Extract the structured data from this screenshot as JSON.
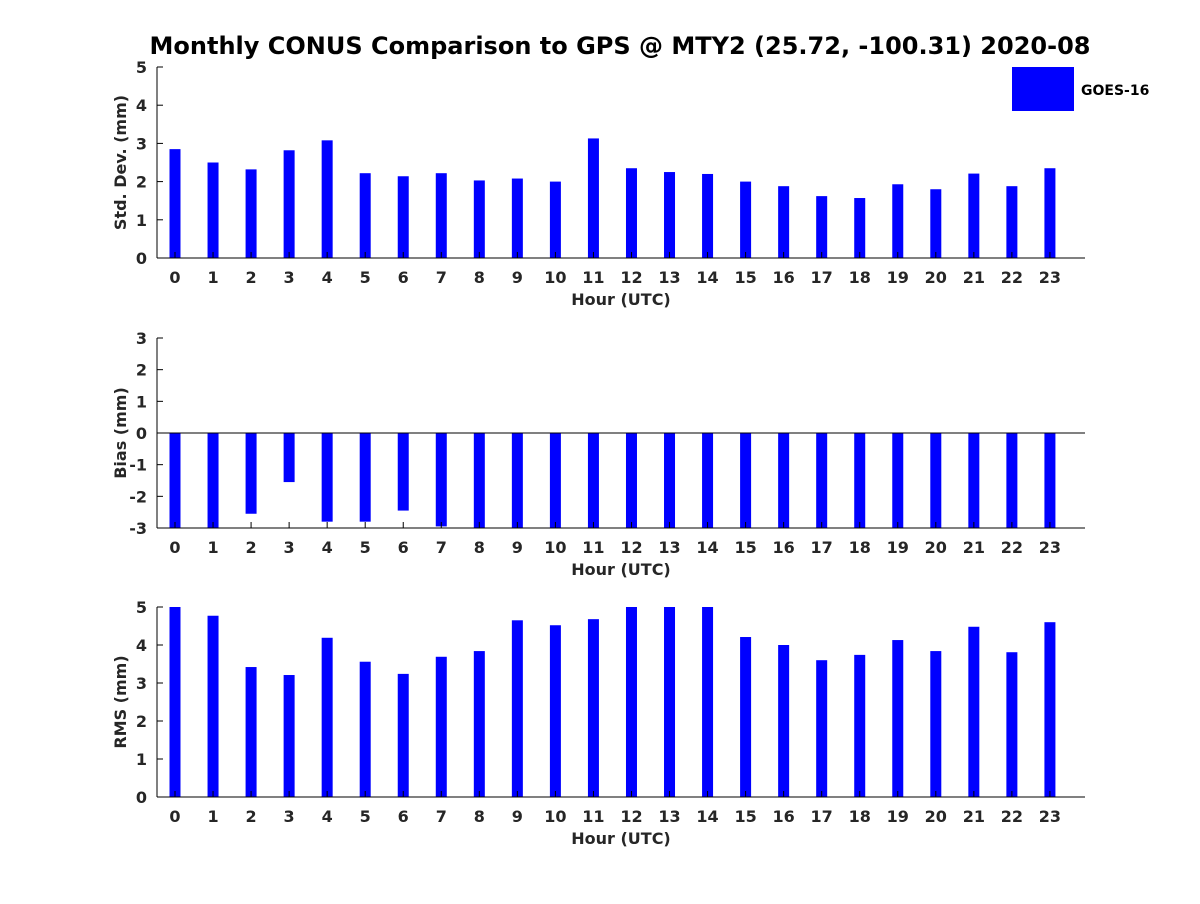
{
  "chart_data": {
    "title": "Monthly CONUS Comparison to GPS @ MTY2 (25.72, -100.31) 2020-08",
    "type": "bar",
    "legend": {
      "label": "GOES-16",
      "color": "#0000ff",
      "placement": "top-right"
    },
    "categories": [
      "0",
      "1",
      "2",
      "3",
      "4",
      "5",
      "6",
      "7",
      "8",
      "9",
      "10",
      "11",
      "12",
      "13",
      "14",
      "15",
      "16",
      "17",
      "18",
      "19",
      "20",
      "21",
      "22",
      "23"
    ],
    "panels": [
      {
        "name": "std-dev",
        "type": "bar",
        "xlabel": "Hour (UTC)",
        "ylabel": "Std. Dev. (mm)",
        "ylim": [
          0,
          5
        ],
        "yticks": [
          "0",
          "1",
          "2",
          "3",
          "4",
          "5"
        ],
        "series": [
          {
            "name": "GOES-16",
            "values": [
              2.85,
              2.5,
              2.32,
              2.82,
              3.08,
              2.22,
              2.14,
              2.22,
              2.03,
              2.08,
              2.0,
              3.13,
              2.35,
              2.25,
              2.2,
              2.0,
              1.88,
              1.62,
              1.57,
              1.93,
              1.8,
              2.21,
              1.88,
              2.35
            ]
          }
        ]
      },
      {
        "name": "bias",
        "type": "bar",
        "xlabel": "Hour (UTC)",
        "ylabel": "Bias (mm)",
        "ylim": [
          -3,
          3
        ],
        "yticks": [
          "-3",
          "-2",
          "-1",
          "0",
          "1",
          "2",
          "3"
        ],
        "series": [
          {
            "name": "GOES-16",
            "values": [
              -3.0,
              -3.0,
              -2.55,
              -1.55,
              -2.8,
              -2.8,
              -2.45,
              -2.95,
              -3.0,
              -3.0,
              -3.0,
              -3.0,
              -3.0,
              -3.0,
              -3.0,
              -3.0,
              -3.0,
              -3.0,
              -3.0,
              -3.0,
              -3.0,
              -3.0,
              -3.0,
              -3.0
            ]
          }
        ]
      },
      {
        "name": "rms",
        "type": "bar",
        "xlabel": "Hour (UTC)",
        "ylabel": "RMS (mm)",
        "ylim": [
          0,
          5
        ],
        "yticks": [
          "0",
          "1",
          "2",
          "3",
          "4",
          "5"
        ],
        "series": [
          {
            "name": "GOES-16",
            "values": [
              5.0,
              4.77,
              3.42,
              3.21,
              4.19,
              3.56,
              3.24,
              3.69,
              3.84,
              4.65,
              4.52,
              4.68,
              5.0,
              5.0,
              5.0,
              4.21,
              4.0,
              3.6,
              3.74,
              4.13,
              3.84,
              4.48,
              3.81,
              4.6
            ]
          }
        ]
      }
    ]
  }
}
